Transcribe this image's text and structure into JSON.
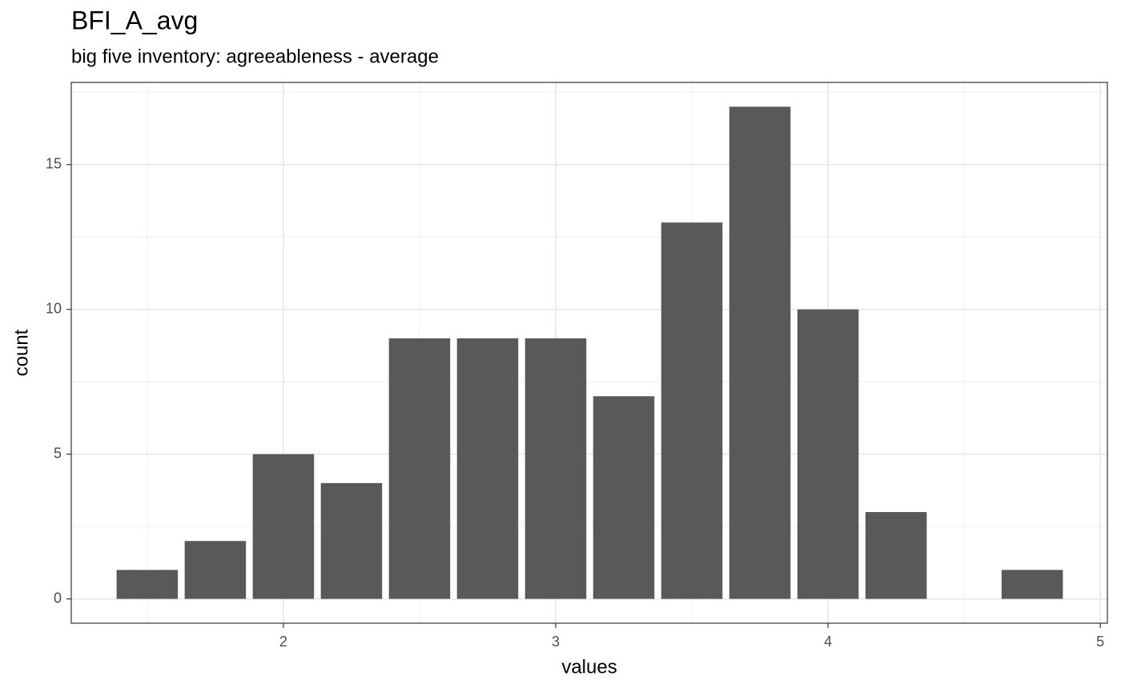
{
  "chart_data": {
    "type": "bar",
    "title": "BFI_A_avg",
    "subtitle": "big five inventory: agreeableness - average",
    "x_label": "values",
    "y_label": "count",
    "x": [
      1.5,
      1.75,
      2,
      2.25,
      2.5,
      2.75,
      3,
      3.25,
      3.5,
      3.75,
      4,
      4.25,
      4.75
    ],
    "values": [
      1,
      2,
      5,
      4,
      9,
      9,
      9,
      7,
      13,
      17,
      10,
      3,
      1
    ],
    "color": "#595959",
    "xlim": [
      1.221,
      5.026
    ],
    "ylim": [
      -0.84,
      17.84
    ],
    "xticks": [
      2,
      3,
      4,
      5
    ],
    "yticks": [
      0,
      5,
      10,
      15
    ],
    "grid": true
  }
}
